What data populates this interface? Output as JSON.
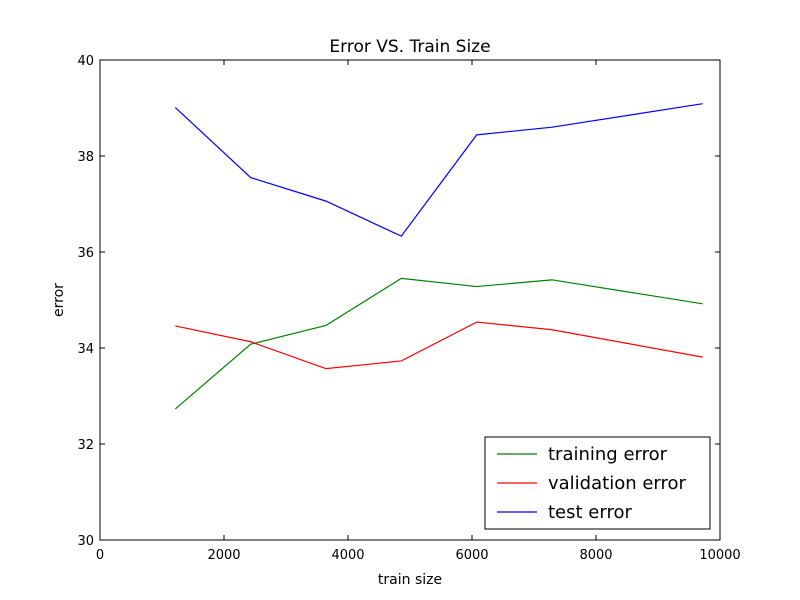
{
  "chart_data": {
    "type": "line",
    "title": "Error VS. Train Size",
    "xlabel": "train size",
    "ylabel": "error",
    "xlim": [
      0,
      10000
    ],
    "ylim": [
      30,
      40
    ],
    "x_ticks": [
      0,
      2000,
      4000,
      6000,
      8000,
      10000
    ],
    "y_ticks": [
      30,
      32,
      34,
      36,
      38,
      40
    ],
    "x_tick_labels": [
      "0",
      "2000",
      "4000",
      "6000",
      "8000",
      "10000"
    ],
    "y_tick_labels": [
      "30",
      "32",
      "34",
      "36",
      "38",
      "40"
    ],
    "grid": false,
    "legend_position": "lower-right",
    "x": [
      1215,
      2430,
      3645,
      4860,
      6075,
      7290,
      9720
    ],
    "series": [
      {
        "name": "training error",
        "color": "#008000",
        "values": [
          32.73,
          34.08,
          34.47,
          35.45,
          35.28,
          35.42,
          34.92
        ]
      },
      {
        "name": "validation error",
        "color": "#ff0000",
        "values": [
          34.46,
          34.13,
          33.57,
          33.73,
          34.54,
          34.38,
          33.81
        ]
      },
      {
        "name": "test error",
        "color": "#0000ff",
        "values": [
          39.01,
          37.55,
          37.06,
          36.33,
          38.44,
          38.6,
          39.09
        ]
      }
    ]
  }
}
